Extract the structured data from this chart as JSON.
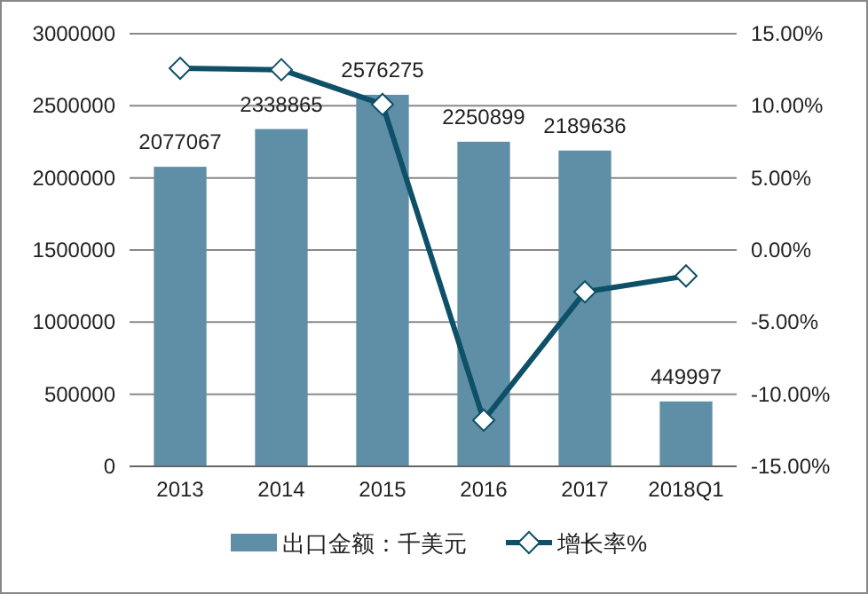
{
  "chart_data": {
    "type": "bar",
    "categories": [
      "2013",
      "2014",
      "2015",
      "2016",
      "2017",
      "2018Q1"
    ],
    "series": [
      {
        "name": "出口金额：千美元",
        "color": "#5e8fa6",
        "values": [
          2077067,
          2338865,
          2576275,
          2250899,
          2189636,
          449997
        ],
        "value_labels": [
          "2077067",
          "2338865",
          "2576275",
          "2250899",
          "2189636",
          "449997"
        ]
      },
      {
        "name": "增长率%",
        "type": "line",
        "axis": "y2",
        "color": "#0e5068",
        "marker": "diamond",
        "values": [
          12.6,
          12.5,
          10.1,
          -11.8,
          -2.9,
          -1.8
        ]
      }
    ],
    "ylim": [
      0,
      3000000
    ],
    "yticks": [
      0,
      500000,
      1000000,
      1500000,
      2000000,
      2500000,
      3000000
    ],
    "y2lim": [
      -15,
      15
    ],
    "y2ticks": [
      {
        "value": -15,
        "label": "-15.00%"
      },
      {
        "value": -10,
        "label": "-10.00%"
      },
      {
        "value": -5,
        "label": "-5.00%"
      },
      {
        "value": 0,
        "label": "0.00%"
      },
      {
        "value": 5,
        "label": "5.00%"
      },
      {
        "value": 10,
        "label": "10.00%"
      },
      {
        "value": 15,
        "label": "15.00%"
      }
    ],
    "grid": "y",
    "legend": "bottom"
  }
}
